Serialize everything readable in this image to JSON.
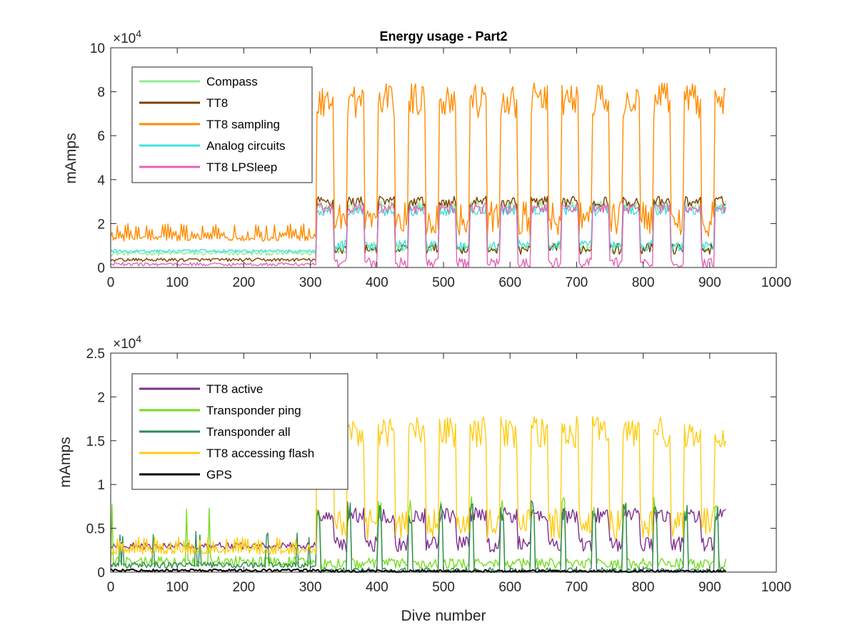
{
  "chart_data": [
    {
      "type": "line",
      "title": "Energy usage - Part2",
      "xlabel": "",
      "ylabel": "mAmps",
      "exponent_label": "×10",
      "exponent_power": "4",
      "xlim": [
        0,
        1000
      ],
      "ylim": [
        0,
        100000
      ],
      "xticks": [
        0,
        100,
        200,
        300,
        400,
        500,
        600,
        700,
        800,
        900,
        1000
      ],
      "yticks": [
        0,
        20000,
        40000,
        60000,
        80000,
        100000
      ],
      "ytick_labels": [
        "0",
        "2",
        "4",
        "6",
        "8",
        "10"
      ],
      "legend_position": "top-left",
      "grid": false,
      "x_end": 925,
      "series": [
        {
          "name": "Compass",
          "color": "#90ee90",
          "pattern": "steady-then-cycle",
          "pre_value": 6500,
          "pre_noise": 2000,
          "post_low": 9000,
          "post_high": 28000,
          "post_noise": 2500
        },
        {
          "name": "TT8",
          "color": "#7b3f00",
          "pattern": "steady-then-cycle",
          "pre_value": 3500,
          "pre_noise": 1500,
          "post_low": 8500,
          "post_high": 30000,
          "post_noise": 2500
        },
        {
          "name": "TT8 sampling",
          "color": "#ff8c00",
          "pattern": "spiky-then-plateau",
          "pre_value": 12000,
          "pre_noise": 8000,
          "post_low": 22000,
          "post_high": 76000,
          "post_noise": 8000
        },
        {
          "name": "Analog circuits",
          "color": "#40e0e0",
          "pattern": "steady-then-cycle",
          "pre_value": 7500,
          "pre_noise": 1500,
          "post_low": 10000,
          "post_high": 26000,
          "post_noise": 2500
        },
        {
          "name": "TT8 LPSleep",
          "color": "#e366b4",
          "pattern": "steady-then-cycle",
          "pre_value": 1500,
          "pre_noise": 1500,
          "post_low": 2000,
          "post_high": 27000,
          "post_noise": 2500
        }
      ]
    },
    {
      "type": "line",
      "title": "",
      "xlabel": "Dive number",
      "ylabel": "mAmps",
      "exponent_label": "×10",
      "exponent_power": "4",
      "xlim": [
        0,
        1000
      ],
      "ylim": [
        0,
        25000
      ],
      "xticks": [
        0,
        100,
        200,
        300,
        400,
        500,
        600,
        700,
        800,
        900,
        1000
      ],
      "yticks": [
        0,
        5000,
        10000,
        15000,
        20000,
        25000
      ],
      "ytick_labels": [
        "0",
        "0.5",
        "1",
        "1.5",
        "2",
        "2.5"
      ],
      "legend_position": "top-left",
      "grid": false,
      "x_end": 925,
      "series": [
        {
          "name": "TT8 active",
          "color": "#7e2f8e",
          "pattern": "steady-then-cycle",
          "pre_value": 3000,
          "pre_noise": 800,
          "post_low": 3200,
          "post_high": 6500,
          "post_noise": 900
        },
        {
          "name": "Transponder ping",
          "color": "#77dd22",
          "pattern": "spikes",
          "pre_value": 1200,
          "pre_noise": 1200,
          "post_low": 1000,
          "post_high": 8000,
          "post_noise": 1500
        },
        {
          "name": "Transponder all",
          "color": "#2e8b57",
          "pattern": "spikes",
          "pre_value": 800,
          "pre_noise": 700,
          "post_low": 200,
          "post_high": 7500,
          "post_noise": 800
        },
        {
          "name": "TT8 accessing flash",
          "color": "#ffcc11",
          "pattern": "spiky-then-plateau",
          "pre_value": 2000,
          "pre_noise": 2000,
          "post_low": 5500,
          "post_high": 16000,
          "post_noise": 1800
        },
        {
          "name": "GPS",
          "color": "#000000",
          "pattern": "flat",
          "pre_value": 200,
          "pre_noise": 150,
          "post_low": 100,
          "post_high": 300,
          "post_noise": 150
        }
      ]
    }
  ]
}
